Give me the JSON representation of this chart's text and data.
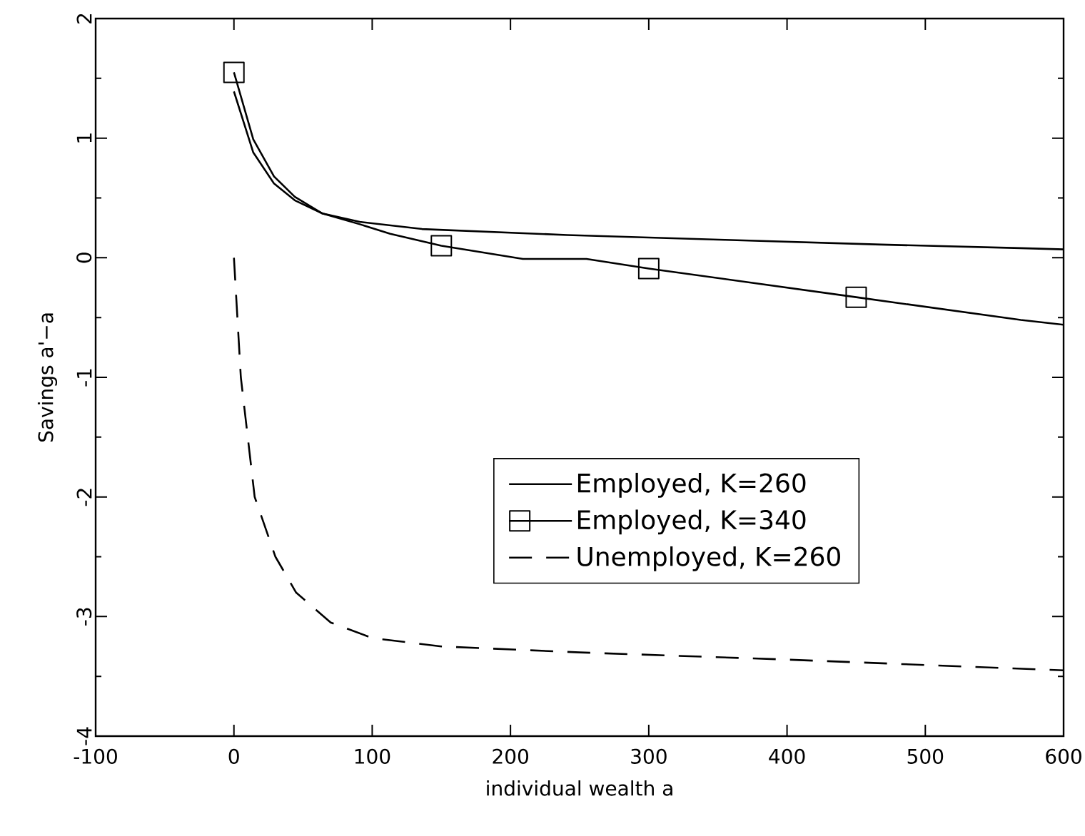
{
  "chart_data": {
    "type": "line",
    "xlabel": "individual wealth a",
    "ylabel": "Savings a'−a",
    "xlim": [
      -100,
      600
    ],
    "ylim": [
      -4,
      2
    ],
    "xticks": [
      -100,
      0,
      100,
      200,
      300,
      400,
      500,
      600
    ],
    "yticks": [
      -4,
      -3,
      -2,
      -1,
      0,
      1,
      2
    ],
    "grid": false,
    "legend": "right",
    "series": [
      {
        "name": "Employed, K=260",
        "color": "#000000",
        "line_style": "solid",
        "x": [
          0,
          14,
          29,
          44,
          64,
          91,
          136,
          241,
          355,
          468,
          569,
          600
        ],
        "values": [
          1.39,
          0.88,
          0.62,
          0.48,
          0.37,
          0.3,
          0.24,
          0.19,
          0.15,
          0.11,
          0.08,
          0.07
        ]
      },
      {
        "name": "Employed, K=340",
        "color": "#000000",
        "line_style": "solid",
        "x": [
          0,
          14,
          29,
          44,
          64,
          91,
          113,
          150,
          209,
          255,
          300,
          450,
          569,
          600
        ],
        "values": [
          1.55,
          0.99,
          0.68,
          0.51,
          0.37,
          0.28,
          0.2,
          0.1,
          -0.01,
          -0.01,
          -0.09,
          -0.33,
          -0.52,
          -0.56
        ]
      },
      {
        "type": "scatter",
        "color": "#000000",
        "marker": "square",
        "x": [
          0,
          150,
          300,
          450
        ],
        "values": [
          1.55,
          0.1,
          -0.09,
          -0.33
        ]
      },
      {
        "name": "Unemployed, K=260",
        "color": "#000000",
        "line_style": "dashed",
        "x": [
          0,
          5,
          15,
          30,
          45,
          70,
          100,
          150,
          250,
          400,
          600
        ],
        "values": [
          0,
          -1,
          -2,
          -2.5,
          -2.8,
          -3.05,
          -3.18,
          -3.25,
          -3.3,
          -3.36,
          -3.45
        ]
      }
    ]
  }
}
